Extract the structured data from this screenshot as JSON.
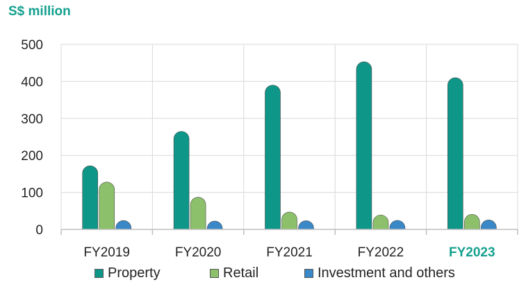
{
  "unit_label": "S$ million",
  "chart_data": {
    "type": "bar",
    "categories": [
      "FY2019",
      "FY2020",
      "FY2021",
      "FY2022",
      "FY2023"
    ],
    "highlight_category": "FY2023",
    "series": [
      {
        "name": "Property",
        "color": "#0e9688",
        "values": [
          172,
          265,
          390,
          453,
          410
        ]
      },
      {
        "name": "Retail",
        "color": "#8cc06a",
        "values": [
          128,
          87,
          47,
          37,
          40
        ]
      },
      {
        "name": "Investment and others",
        "color": "#3a88c8",
        "values": [
          7,
          4,
          6,
          8,
          10
        ]
      }
    ],
    "y_ticks": [
      "0",
      "100",
      "200",
      "300",
      "400",
      "500"
    ],
    "ylim": [
      0,
      500
    ],
    "grid": true,
    "legend_position": "bottom"
  }
}
